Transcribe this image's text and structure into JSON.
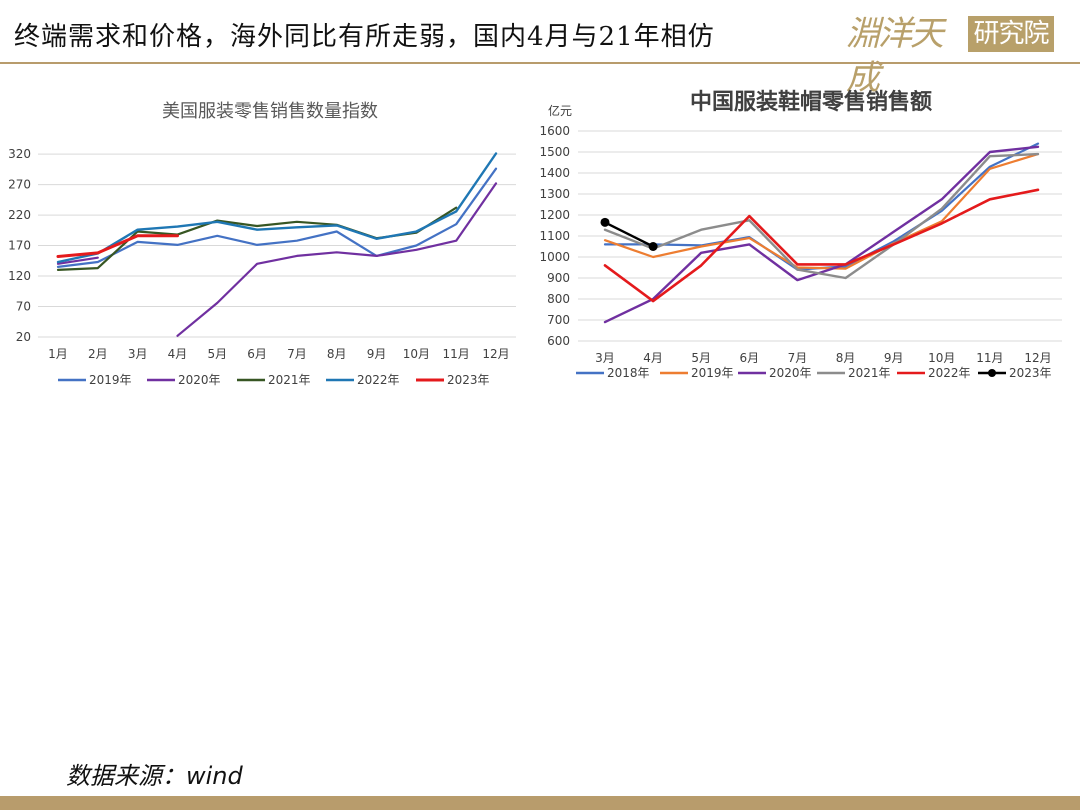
{
  "slide": {
    "title": "终端需求和价格，海外同比有所走弱，国内4月与21年相仿",
    "logo_text": "淵洋天成",
    "logo_box_text": "研究院",
    "source_note": "数据来源：wind"
  },
  "colors": {
    "accent": "#b89c6c"
  },
  "chart_data": [
    {
      "type": "line",
      "title": "美国服装零售销售数量指数",
      "xlabel": "",
      "ylabel": "",
      "categories": [
        "1月",
        "2月",
        "3月",
        "4月",
        "5月",
        "6月",
        "7月",
        "8月",
        "9月",
        "10月",
        "11月",
        "12月"
      ],
      "yticks": [
        20,
        70,
        120,
        170,
        220,
        270,
        320
      ],
      "ylim": [
        20,
        330
      ],
      "grid": true,
      "legend_position": "bottom",
      "series": [
        {
          "name": "2019年",
          "color": "#4472c4",
          "width": 2.2,
          "values": [
            135,
            143,
            176,
            171,
            186,
            171,
            178,
            193,
            153,
            170,
            205,
            296
          ]
        },
        {
          "name": "2020年",
          "color": "#7030a0",
          "width": 2.2,
          "values": [
            140,
            150,
            null,
            22,
            76,
            140,
            153,
            159,
            153,
            163,
            178,
            272
          ]
        },
        {
          "name": "2021年",
          "color": "#375623",
          "width": 2.2,
          "values": [
            130,
            133,
            193,
            188,
            211,
            202,
            209,
            204,
            182,
            191,
            232,
            null
          ]
        },
        {
          "name": "2022年",
          "color": "#1f77b4",
          "width": 2.4,
          "values": [
            143,
            157,
            196,
            201,
            209,
            196,
            200,
            203,
            181,
            193,
            226,
            321
          ]
        },
        {
          "name": "2023年",
          "color": "#e41a1c",
          "width": 3,
          "values": [
            152,
            158,
            186,
            186,
            null,
            null,
            null,
            null,
            null,
            null,
            null,
            null
          ]
        }
      ]
    },
    {
      "type": "line",
      "title": "中国服装鞋帽零售销售额",
      "unit_label": "亿元",
      "xlabel": "",
      "ylabel": "",
      "categories": [
        "3月",
        "4月",
        "5月",
        "6月",
        "7月",
        "8月",
        "9月",
        "10月",
        "11月",
        "12月"
      ],
      "yticks": [
        600,
        700,
        800,
        900,
        1000,
        1100,
        1200,
        1300,
        1400,
        1500,
        1600
      ],
      "ylim": [
        600,
        1600
      ],
      "grid": true,
      "legend_position": "bottom",
      "series": [
        {
          "name": "2018年",
          "color": "#4472c4",
          "width": 2.2,
          "markers": false,
          "values": [
            1060,
            1060,
            1055,
            1095,
            940,
            955,
            1075,
            1220,
            1430,
            1540
          ]
        },
        {
          "name": "2019年",
          "color": "#ed7d31",
          "width": 2.2,
          "markers": false,
          "values": [
            1080,
            1000,
            1050,
            1090,
            950,
            945,
            1065,
            1170,
            1420,
            1490
          ]
        },
        {
          "name": "2020年",
          "color": "#7030a0",
          "width": 2.4,
          "markers": false,
          "values": [
            690,
            800,
            1020,
            1060,
            890,
            965,
            1120,
            1275,
            1500,
            1525
          ]
        },
        {
          "name": "2021年",
          "color": "#8c8c8c",
          "width": 2.4,
          "markers": false,
          "values": [
            1130,
            1040,
            1130,
            1175,
            940,
            900,
            1060,
            1230,
            1480,
            1490
          ]
        },
        {
          "name": "2022年",
          "color": "#e41a1c",
          "width": 2.6,
          "markers": false,
          "values": [
            960,
            790,
            960,
            1195,
            965,
            965,
            1060,
            1160,
            1275,
            1320
          ]
        },
        {
          "name": "2023年",
          "color": "#000000",
          "width": 2.4,
          "markers": true,
          "values": [
            1165,
            1050,
            null,
            null,
            null,
            null,
            null,
            null,
            null,
            null
          ]
        }
      ]
    }
  ]
}
